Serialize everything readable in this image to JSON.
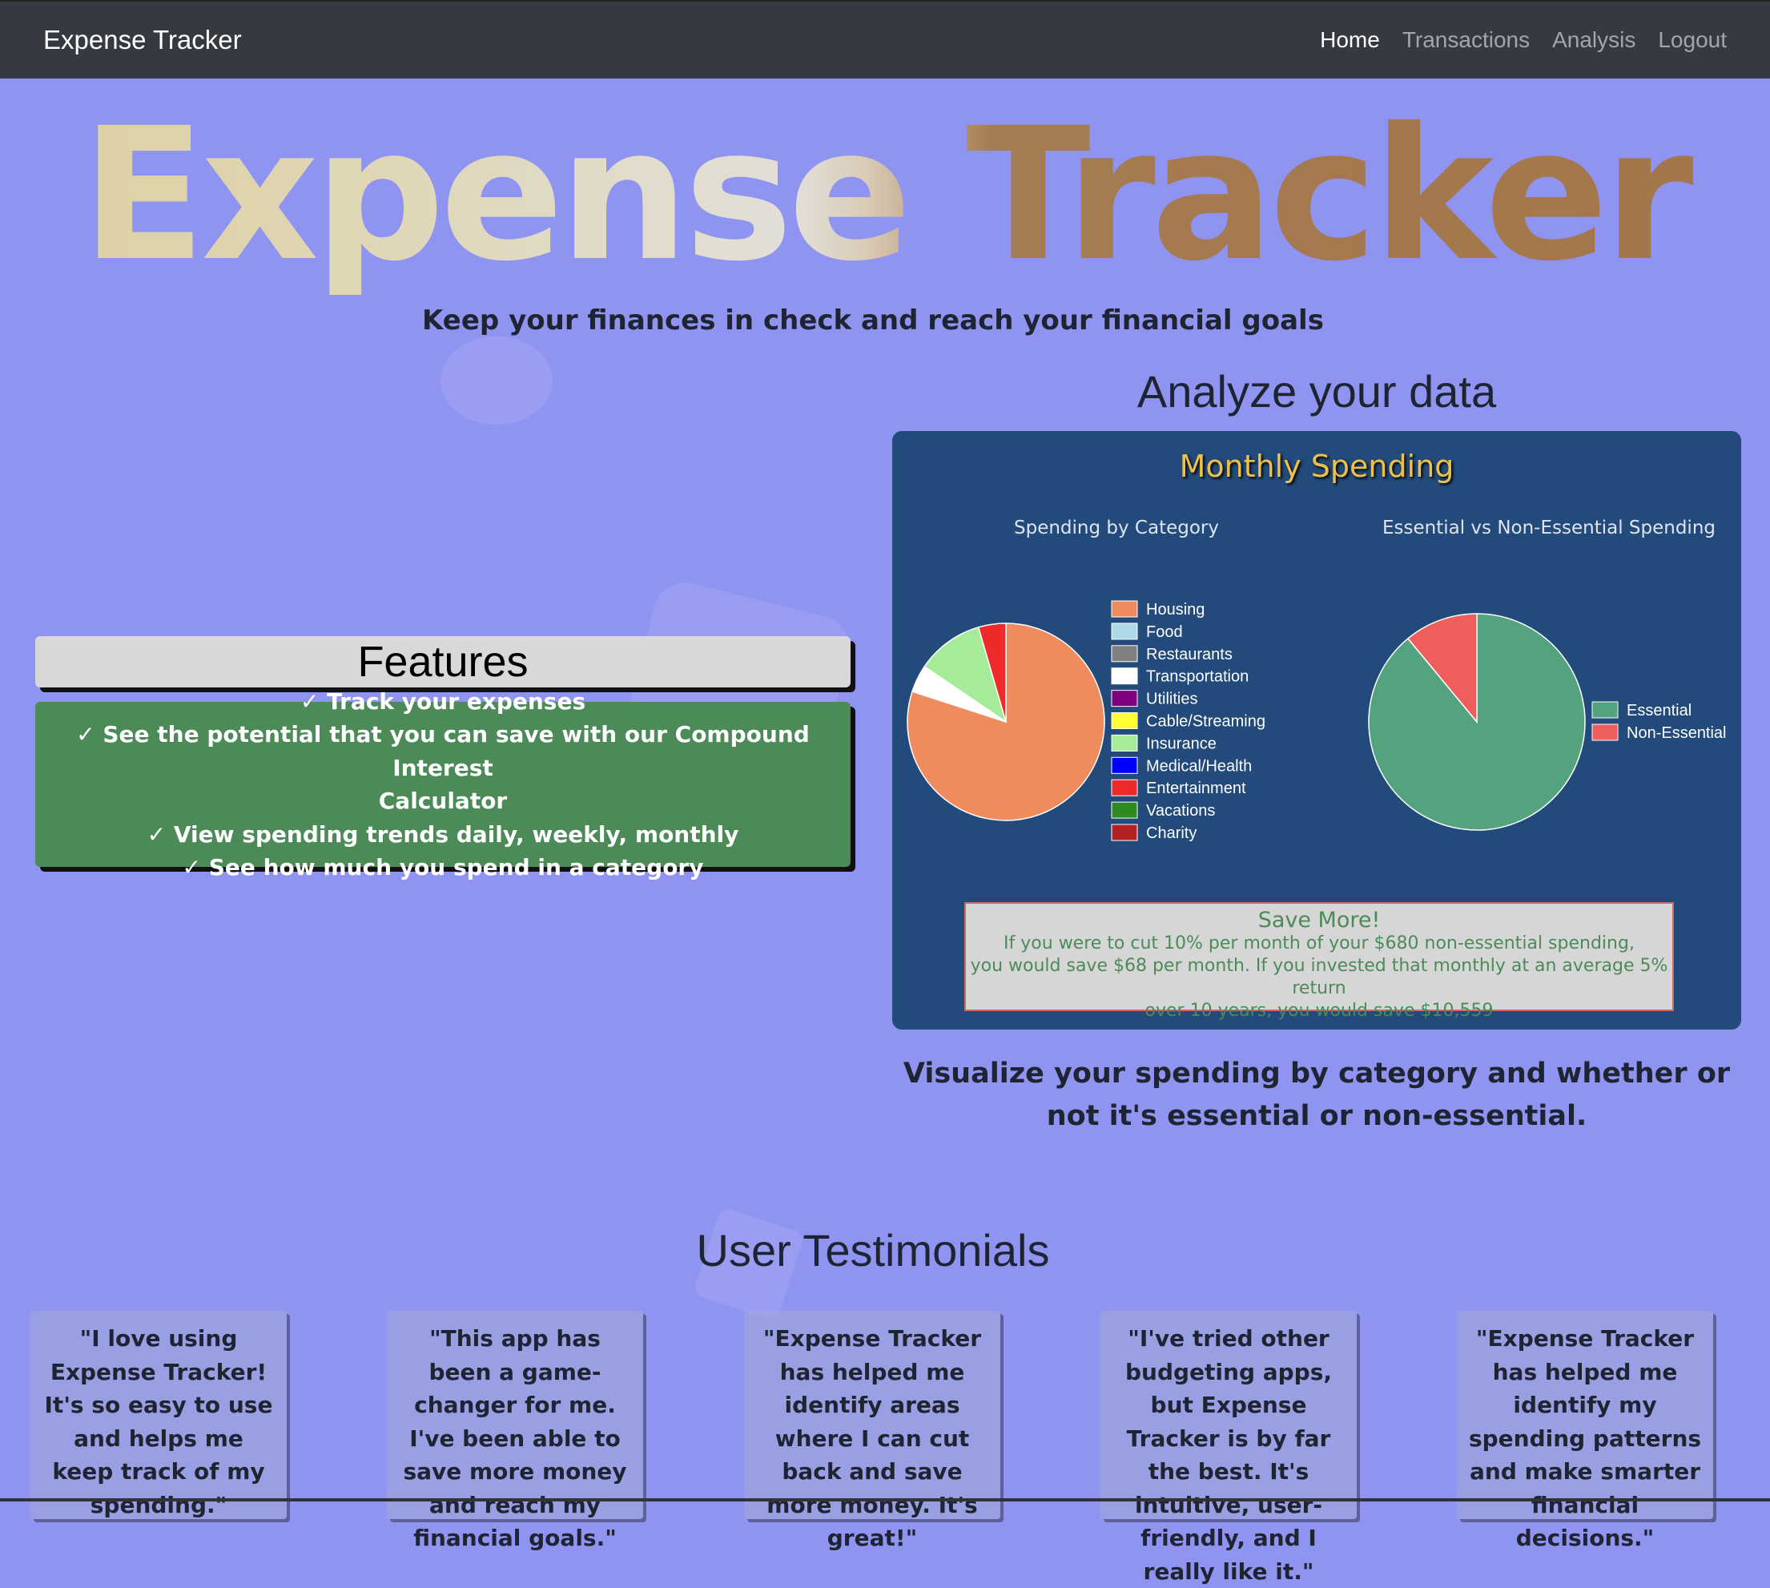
{
  "navbar": {
    "brand": "Expense Tracker",
    "links": [
      "Home",
      "Transactions",
      "Analysis",
      "Logout"
    ],
    "active": "Home",
    "background": "#343a40"
  },
  "hero": {
    "title": "Expense Tracker",
    "subtitle": "Keep your finances in check and reach your financial goals"
  },
  "features": {
    "heading": "Features",
    "items": [
      "Track your expenses",
      "See the potential that you can save with our Compound Interest",
      "Calculator",
      "View spending trends daily, weekly, monthly",
      "See how much you spend in a category"
    ],
    "check_icon": "check-icon"
  },
  "analyze": {
    "heading": "Analyze your data",
    "card_title": "Monthly Spending",
    "caption": "Visualize your spending by category and whether or not it's essential or non-essential."
  },
  "chart_data": [
    {
      "type": "pie",
      "title": "Spending by Category",
      "categories": [
        "Housing",
        "Food",
        "Restaurants",
        "Transportation",
        "Utilities",
        "Cable/Streaming",
        "Insurance",
        "Medical/Health",
        "Entertainment",
        "Vacations",
        "Charity"
      ],
      "values": [
        80,
        0,
        0,
        4.5,
        0,
        0,
        11,
        0,
        4.5,
        0,
        0
      ],
      "colors": [
        "#ef8b5d",
        "#add8e6",
        "#808080",
        "#ffffff",
        "#800080",
        "#ffff33",
        "#a6eb99",
        "#0000ff",
        "#ee2a2a",
        "#2e8b20",
        "#b22222"
      ],
      "legend": "right"
    },
    {
      "type": "pie",
      "title": "Essential vs Non-Essential Spending",
      "categories": [
        "Essential",
        "Non-Essential"
      ],
      "values": [
        89,
        11
      ],
      "colors": [
        "#52a37e",
        "#ef5d5d"
      ],
      "legend": "right"
    }
  ],
  "save_more": {
    "title": "Save More!",
    "line1": "If you were to cut 10% per month of your $680 non-essential spending,",
    "line2": "you would save $68 per month. If you invested that monthly at an average 5% return",
    "line3": "over 10 years, you would save $10,559"
  },
  "testimonials": {
    "heading": "User Testimonials",
    "items": [
      "\"I love using Expense Tracker! It's so easy to use and helps me keep track of my spending.\"",
      "\"This app has been a game-changer for me. I've been able to save more money and reach my financial goals.\"",
      "\"Expense Tracker has helped me identify areas where I can cut back and save more money. It's great!\"",
      "\"I've tried other budgeting apps, but Expense Tracker is by far the best. It's intuitive, user-friendly, and I really like it.\"",
      "\"Expense Tracker has helped me identify my spending patterns and make smarter financial decisions.\""
    ]
  },
  "colors": {
    "page_background": "#8f94f1",
    "card_background": "#224a7a",
    "features_green": "#4c8a58",
    "title_gold": "#ecc04a"
  }
}
